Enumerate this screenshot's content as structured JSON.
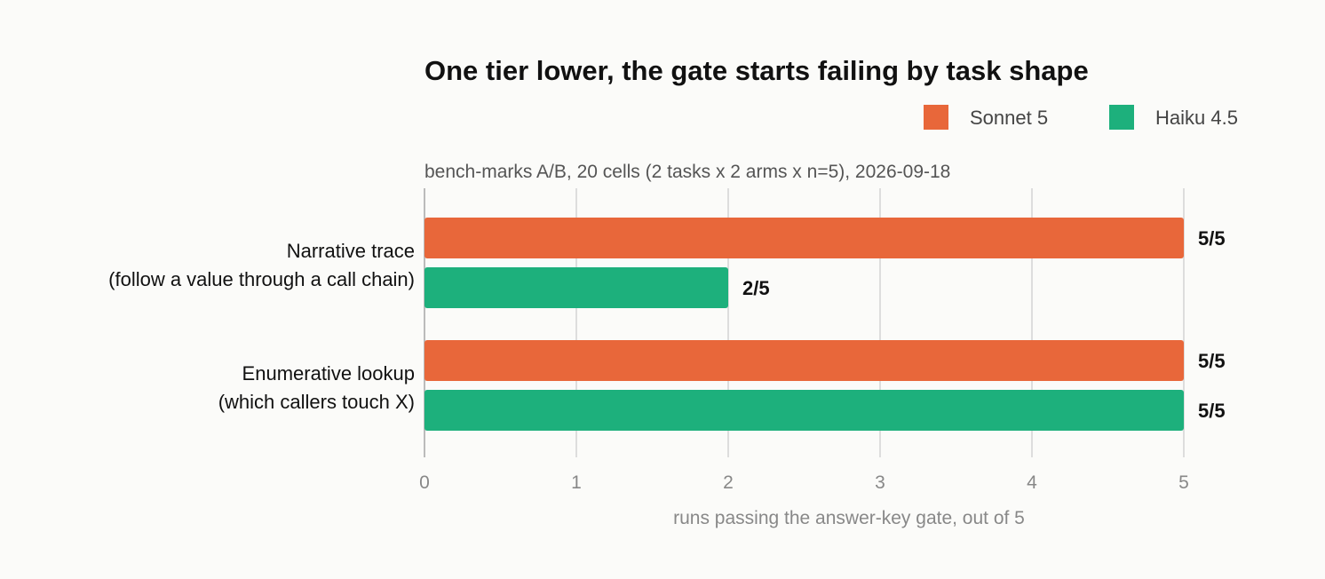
{
  "colors": {
    "Sonnet 5": "#E8673A",
    "Haiku 4.5": "#1DB07C",
    "grid": "#dddddd",
    "axis": "#bbbbbb"
  },
  "chart_data": {
    "type": "bar",
    "orientation": "horizontal",
    "title": "One tier lower, the gate starts failing by task shape",
    "subtitle": "bench-marks A/B, 20 cells (2 tasks x 2 arms x n=5), 2026-09-18",
    "xlabel": "runs passing the answer-key gate, out of 5",
    "xlim": [
      0,
      5
    ],
    "xticks": [
      "0",
      "1",
      "2",
      "3",
      "4",
      "5"
    ],
    "grid": true,
    "legend_position": "top-right",
    "categories": [
      [
        "Narrative trace",
        "(follow a value through a call chain)"
      ],
      [
        "Enumerative lookup",
        "(which callers touch X)"
      ]
    ],
    "series": [
      {
        "name": "Sonnet 5",
        "values": [
          5,
          5
        ],
        "labels": [
          "5/5",
          "5/5"
        ]
      },
      {
        "name": "Haiku 4.5",
        "values": [
          2,
          5
        ],
        "labels": [
          "2/5",
          "5/5"
        ]
      }
    ]
  }
}
